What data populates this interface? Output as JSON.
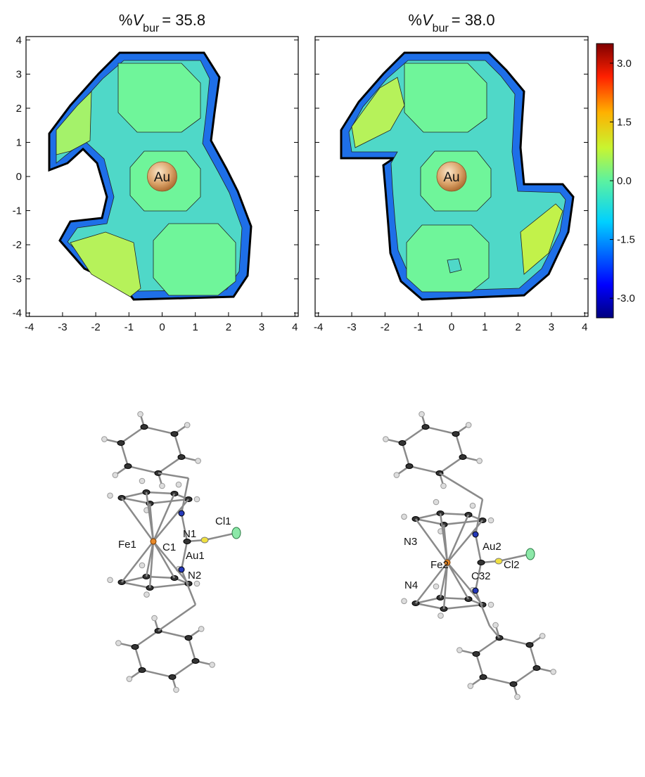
{
  "panels": [
    {
      "title": [
        "%",
        "V",
        "bur",
        "= 35.8"
      ],
      "center_label": "Au"
    },
    {
      "title": [
        "%",
        "V",
        "bur",
        "= 38.0"
      ],
      "center_label": "Au"
    }
  ],
  "axes": {
    "xlim": [
      -4.1,
      4.1
    ],
    "ylim": [
      -4.1,
      4.1
    ],
    "xticks": [
      -4,
      -3,
      -2,
      -1,
      0,
      1,
      2,
      3,
      4
    ],
    "yticks": [
      -4,
      -3,
      -2,
      -1,
      0,
      1,
      2,
      3,
      4
    ]
  },
  "colorbar": {
    "lim": [
      -3.5,
      3.5
    ],
    "ticks": [
      {
        "value": 3,
        "label": "3.0"
      },
      {
        "value": 1.5,
        "label": "1.5"
      },
      {
        "value": 0,
        "label": "0.0"
      },
      {
        "value": -1.5,
        "label": "-1.5"
      },
      {
        "value": -3,
        "label": "-3.0"
      }
    ]
  },
  "structures": [
    {
      "labels": [
        "N1",
        "Cl1",
        "Fe1",
        "C1",
        "Au1",
        "N2"
      ]
    },
    {
      "labels": [
        "N3",
        "Au2",
        "Fe2",
        "Cl2",
        "C32",
        "N4"
      ]
    }
  ]
}
